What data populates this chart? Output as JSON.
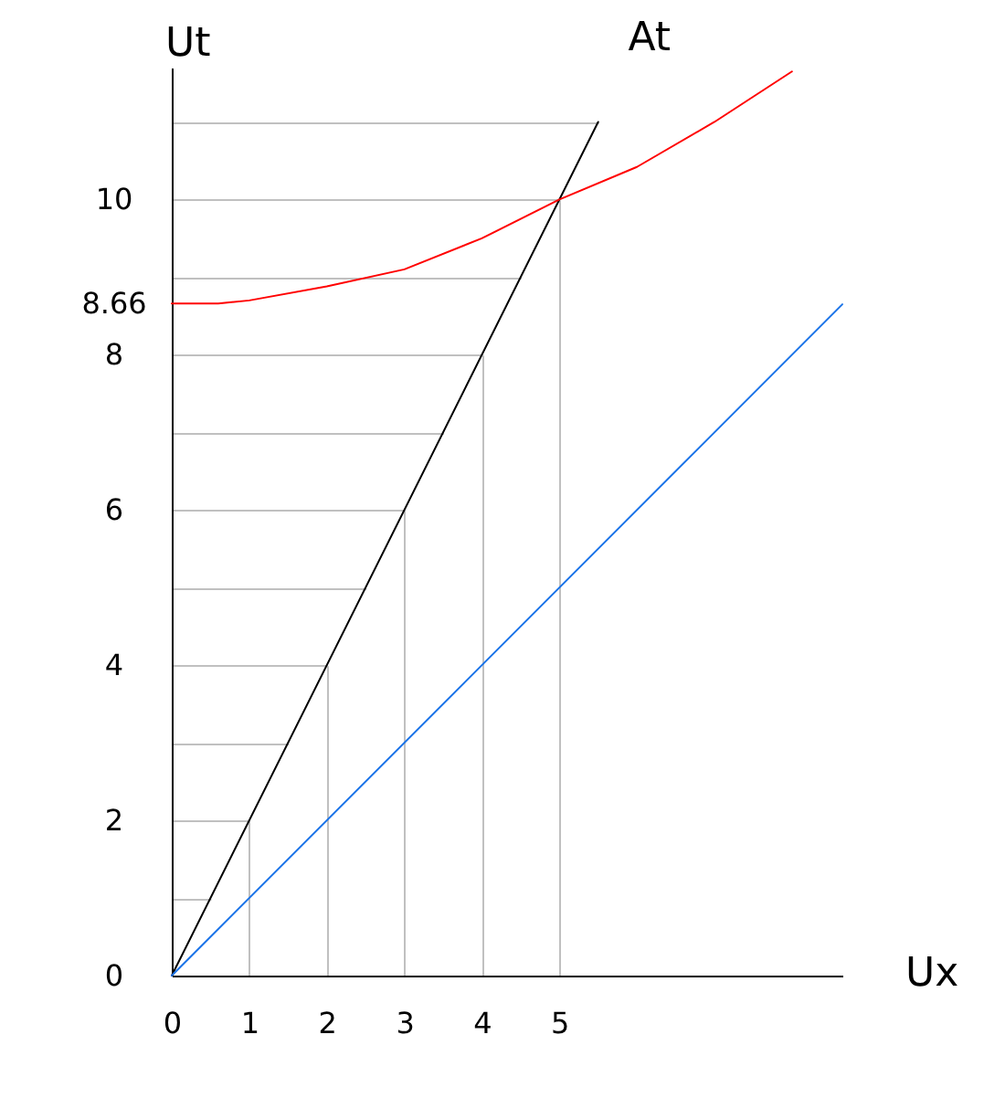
{
  "chart_data": {
    "type": "line",
    "xlabel": "Ux",
    "ylabel": "Ut",
    "xlim": [
      0,
      8.65
    ],
    "ylim": [
      0,
      11.7
    ],
    "xticks": [
      0,
      1,
      2,
      3,
      4,
      5
    ],
    "yticks": [
      0,
      {
        "value": 1,
        "label": null
      },
      2,
      {
        "value": 3,
        "label": null
      },
      4,
      {
        "value": 5,
        "label": null
      },
      6,
      {
        "value": 7,
        "label": null
      },
      8,
      8.66,
      {
        "value": 9,
        "label": null
      },
      10,
      {
        "value": 11,
        "label": null
      }
    ],
    "grid": true,
    "series": [
      {
        "name": "At",
        "color": "#000000",
        "x": [
          0,
          5.5
        ],
        "values": [
          0,
          11
        ]
      },
      {
        "color": "#ff0000",
        "x": [
          0,
          0.6,
          1,
          2,
          3,
          4,
          5,
          6,
          7,
          8
        ],
        "values": [
          8.66,
          8.66,
          8.7,
          8.88,
          9.1,
          9.5,
          10,
          10.42,
          11.0,
          11.65
        ]
      },
      {
        "color": "#1a73e8",
        "x": [
          0,
          8.65
        ],
        "values": [
          0,
          8.65
        ]
      }
    ]
  }
}
